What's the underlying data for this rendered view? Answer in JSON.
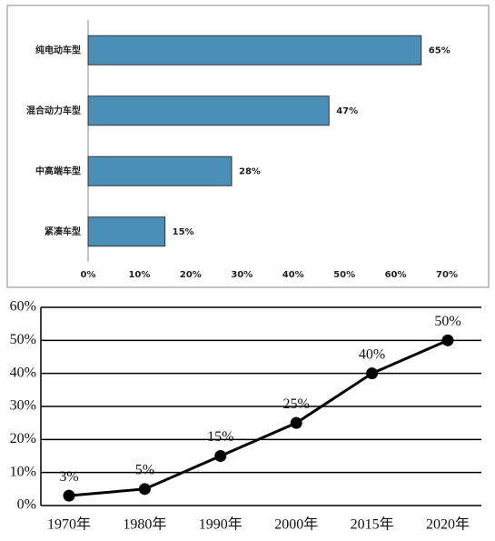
{
  "chart_data": [
    {
      "type": "hbar",
      "categories": [
        "纯电动车型",
        "混合动力车型",
        "中高端车型",
        "紧凑车型"
      ],
      "values": [
        65,
        47,
        28,
        15
      ],
      "value_labels": [
        "65%",
        "47%",
        "28%",
        "15%"
      ],
      "color": "#4a8fb5",
      "xlim": [
        0,
        70
      ],
      "xticks": [
        {
          "value": 0,
          "label": "0%"
        },
        {
          "value": 10,
          "label": "10%"
        },
        {
          "value": 20,
          "label": "20%"
        },
        {
          "value": 30,
          "label": "30%"
        },
        {
          "value": 40,
          "label": "40%"
        },
        {
          "value": 50,
          "label": "50%"
        },
        {
          "value": 60,
          "label": "60%"
        },
        {
          "value": 70,
          "label": "70%"
        }
      ]
    },
    {
      "type": "line",
      "categories": [
        "1970年",
        "1980年",
        "1990年",
        "2000年",
        "2015年",
        "2020年"
      ],
      "values": [
        3,
        5,
        15,
        25,
        40,
        50
      ],
      "value_labels": [
        "3%",
        "5%",
        "15%",
        "25%",
        "40%",
        "50%"
      ],
      "color": "#000000",
      "ylim": [
        0,
        60
      ],
      "yticks": [
        {
          "value": 0,
          "label": "0%"
        },
        {
          "value": 10,
          "label": "10%"
        },
        {
          "value": 20,
          "label": "20%"
        },
        {
          "value": 30,
          "label": "30%"
        },
        {
          "value": 40,
          "label": "40%"
        },
        {
          "value": 50,
          "label": "50%"
        },
        {
          "value": 60,
          "label": "60%"
        }
      ],
      "grid": true
    }
  ]
}
